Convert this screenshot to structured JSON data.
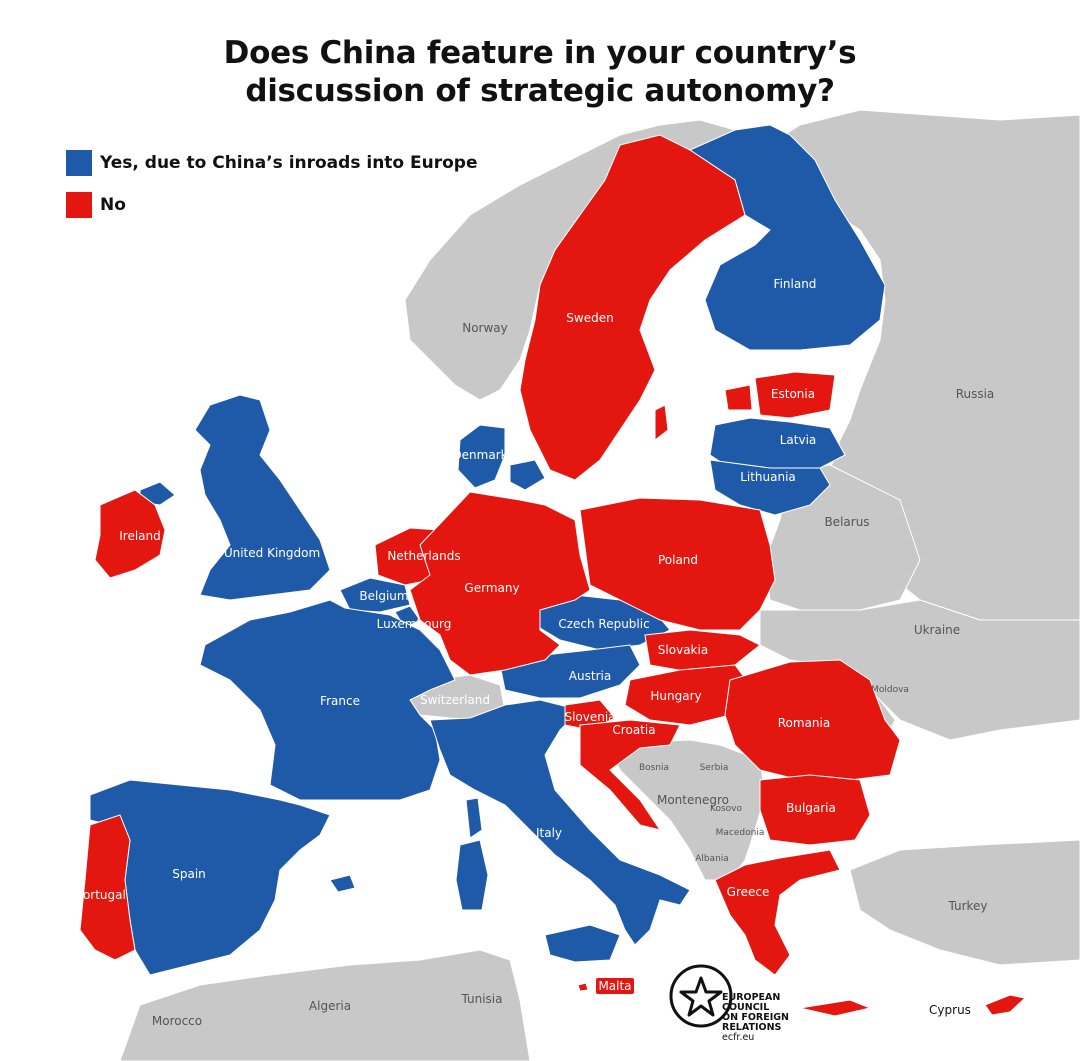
{
  "title": {
    "line1": "Does China feature in your country’s",
    "line2": "discussion of strategic autonomy?"
  },
  "legend": [
    {
      "label": "Yes, due to China’s inroads into Europe",
      "color": "#1f5aa8"
    },
    {
      "label": "No",
      "color": "#e3170f"
    }
  ],
  "colors": {
    "yes": "#1f5aa8",
    "no": "#e3170f",
    "other": "#c8c8c8",
    "sea": "#ffffff"
  },
  "countries": {
    "norway": "Norway",
    "sweden": "Sweden",
    "finland": "Finland",
    "russia": "Russia",
    "estonia": "Estonia",
    "latvia": "Latvia",
    "lithuania": "Lithuania",
    "denmark": "Denmark",
    "ireland": "Ireland",
    "uk": "United Kingdom",
    "netherlands": "Netherlands",
    "belgium": "Belgium",
    "luxembourg": "Luxembourg",
    "germany": "Germany",
    "poland": "Poland",
    "belarus": "Belarus",
    "czech": "Czech Republic",
    "slovakia": "Slovakia",
    "ukraine": "Ukraine",
    "moldova": "Moldova",
    "austria": "Austria",
    "hungary": "Hungary",
    "romania": "Romania",
    "france": "France",
    "switzerland": "Switzerland",
    "slovenia": "Slovenia",
    "croatia": "Croatia",
    "bosnia": "Bosnia",
    "serbia": "Serbia",
    "montenegro": "Montenegro",
    "kosovo": "Kosovo",
    "macedonia": "Macedonia",
    "albania": "Albania",
    "bulgaria": "Bulgaria",
    "italy": "Italy",
    "spain": "Spain",
    "portugal": "Portugal",
    "greece": "Greece",
    "turkey": "Turkey",
    "malta": "Malta",
    "cyprus": "Cyprus",
    "algeria": "Algeria",
    "tunisia": "Tunisia",
    "morocco": "Morocco"
  },
  "logo": {
    "line1": "EUROPEAN",
    "line2": "COUNCIL",
    "line3": "ON FOREIGN",
    "line4": "RELATIONS",
    "url": "ecfr.eu",
    "icon": "star-in-circle-icon"
  }
}
